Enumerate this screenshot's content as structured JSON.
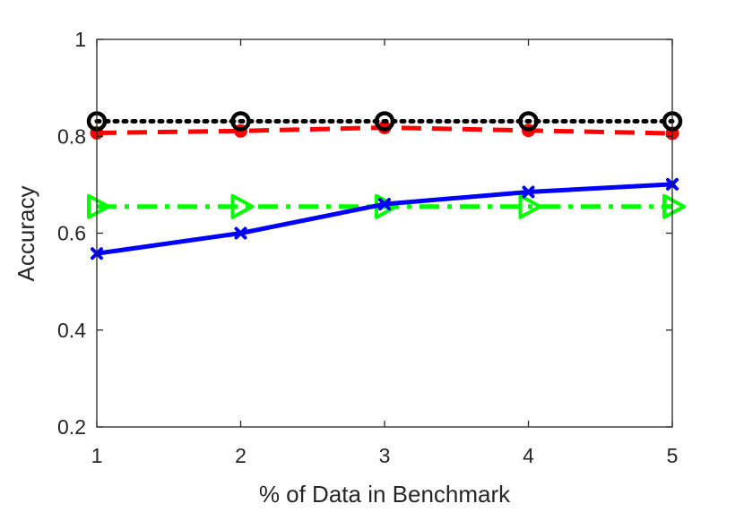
{
  "chart_data": {
    "type": "line",
    "title": "",
    "xlabel": "% of Data in Benchmark",
    "ylabel": "Accuracy",
    "xlim": [
      1,
      5
    ],
    "ylim": [
      0.2,
      1
    ],
    "xticks": [
      1,
      2,
      3,
      4,
      5
    ],
    "xtick_labels": [
      "1",
      "2",
      "3",
      "4",
      "5"
    ],
    "yticks": [
      0.2,
      0.4,
      0.6,
      0.8,
      1.0
    ],
    "ytick_labels": [
      "0.2",
      "0.4",
      "0.6",
      "0.8",
      "1"
    ],
    "grid": false,
    "legend": false,
    "x": [
      1,
      2,
      3,
      4,
      5
    ],
    "series": [
      {
        "values": [
          0.558,
          0.6,
          0.66,
          0.685,
          0.701
        ],
        "color": "#0000ff",
        "line_style": "solid",
        "marker": "x"
      },
      {
        "values": [
          0.807,
          0.811,
          0.818,
          0.812,
          0.806
        ],
        "color": "#ff0000",
        "line_style": "dashed",
        "marker": "circle-filled"
      },
      {
        "values": [
          0.831,
          0.831,
          0.831,
          0.831,
          0.831
        ],
        "color": "#000000",
        "line_style": "dotted",
        "marker": "circle-open"
      },
      {
        "values": [
          0.655,
          0.655,
          0.655,
          0.655,
          0.655
        ],
        "color": "#00ff00",
        "line_style": "dashdot",
        "marker": "triangle-right"
      }
    ]
  }
}
